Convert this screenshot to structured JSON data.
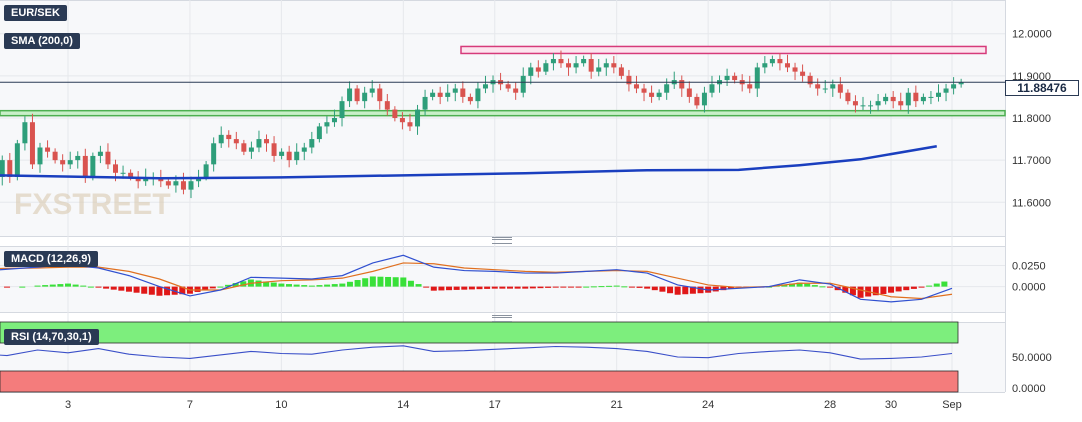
{
  "labels": {
    "pair": "EUR/SEK",
    "sma": "SMA (200,0)",
    "macd": "MACD (12,26,9)",
    "rsi": "RSI (14,70,30,1)",
    "last_price": "11.88476",
    "watermark": "FXSTREET"
  },
  "colors": {
    "up": "#2e9e7a",
    "down": "#d9534f",
    "sma": "#1a3fbf",
    "resistance_zone": "#d63a7a",
    "support_zone": "#4caf50",
    "macd_line": "#3050d0",
    "signal_line": "#e07020",
    "hist_up": "#39e039",
    "hist_down": "#e01818",
    "rsi_line": "#3a4fc8",
    "overbought_fill": "#7dee7d",
    "oversold_fill": "#f47c7c"
  },
  "chart_data": [
    {
      "type": "candlestick",
      "panel": "price",
      "x_ticks": [
        {
          "label": "3",
          "day": 3
        },
        {
          "label": "7",
          "day": 7
        },
        {
          "label": "10",
          "day": 10
        },
        {
          "label": "14",
          "day": 14
        },
        {
          "label": "17",
          "day": 17
        },
        {
          "label": "21",
          "day": 21
        },
        {
          "label": "24",
          "day": 24
        },
        {
          "label": "28",
          "day": 28
        },
        {
          "label": "30",
          "day": 30
        },
        {
          "label": "Sep",
          "day": 32
        }
      ],
      "y_ticks": [
        "12.0000",
        "11.9000",
        "11.8000",
        "11.7000",
        "11.6000"
      ],
      "y_tick_values": [
        12.0,
        11.9,
        11.8,
        11.7,
        11.6
      ],
      "ylim": [
        11.52,
        12.08
      ],
      "last_price": 11.88476,
      "resistance_zone": [
        11.955,
        11.965
      ],
      "support_zone": [
        11.805,
        11.815
      ],
      "sma_200": [
        {
          "day": 0.0,
          "value": 11.665
        },
        {
          "day": 6.0,
          "value": 11.657
        },
        {
          "day": 10.0,
          "value": 11.659
        },
        {
          "day": 14.0,
          "value": 11.664
        },
        {
          "day": 18.0,
          "value": 11.669
        },
        {
          "day": 22.0,
          "value": 11.676
        },
        {
          "day": 25.0,
          "value": 11.677
        },
        {
          "day": 27.0,
          "value": 11.688
        },
        {
          "day": 29.0,
          "value": 11.702
        },
        {
          "day": 31.5,
          "value": 11.733
        }
      ],
      "closes": [
        11.63,
        11.6,
        11.66,
        11.7,
        11.66,
        11.74,
        11.79,
        11.69,
        11.73,
        11.72,
        11.7,
        11.69,
        11.7,
        11.71,
        11.66,
        11.71,
        11.72,
        11.69,
        11.67,
        11.67,
        11.66,
        11.65,
        11.66,
        11.66,
        11.65,
        11.64,
        11.65,
        11.63,
        11.65,
        11.66,
        11.69,
        11.74,
        11.76,
        11.75,
        11.74,
        11.72,
        11.73,
        11.75,
        11.74,
        11.71,
        11.72,
        11.7,
        11.72,
        11.73,
        11.75,
        11.78,
        11.79,
        11.8,
        11.84,
        11.87,
        11.84,
        11.86,
        11.87,
        11.84,
        11.82,
        11.8,
        11.79,
        11.78,
        11.82,
        11.85,
        11.86,
        11.85,
        11.86,
        11.87,
        11.85,
        11.84,
        11.87,
        11.88,
        11.89,
        11.88,
        11.87,
        11.86,
        11.9,
        11.92,
        11.91,
        11.93,
        11.94,
        11.93,
        11.92,
        11.93,
        11.94,
        11.91,
        11.92,
        11.93,
        11.92,
        11.9,
        11.88,
        11.87,
        11.86,
        11.85,
        11.86,
        11.88,
        11.89,
        11.87,
        11.85,
        11.83,
        11.86,
        11.88,
        11.89,
        11.9,
        11.89,
        11.88,
        11.87,
        11.92,
        11.93,
        11.94,
        11.93,
        11.92,
        11.91,
        11.9,
        11.88,
        11.87,
        11.87,
        11.88,
        11.86,
        11.84,
        11.83,
        11.83,
        11.83,
        11.84,
        11.85,
        11.84,
        11.83,
        11.86,
        11.84,
        11.85,
        11.85,
        11.86,
        11.87,
        11.88,
        11.885
      ]
    },
    {
      "type": "line+bar",
      "panel": "macd",
      "y_ticks": [
        "0.0250",
        "0.0000"
      ],
      "y_tick_values": [
        0.025,
        0.0
      ],
      "ylim": [
        -0.03,
        0.048
      ],
      "macd": [
        {
          "day": 0,
          "value": 0.018
        },
        {
          "day": 2,
          "value": 0.023
        },
        {
          "day": 3,
          "value": 0.026
        },
        {
          "day": 4,
          "value": 0.022
        },
        {
          "day": 5,
          "value": 0.013
        },
        {
          "day": 6,
          "value": 0.0
        },
        {
          "day": 7,
          "value": -0.011
        },
        {
          "day": 8,
          "value": -0.004
        },
        {
          "day": 9,
          "value": 0.011
        },
        {
          "day": 10,
          "value": 0.01
        },
        {
          "day": 11,
          "value": 0.009
        },
        {
          "day": 12,
          "value": 0.013
        },
        {
          "day": 13,
          "value": 0.028
        },
        {
          "day": 14,
          "value": 0.037
        },
        {
          "day": 15,
          "value": 0.023
        },
        {
          "day": 16,
          "value": 0.019
        },
        {
          "day": 17,
          "value": 0.018
        },
        {
          "day": 18,
          "value": 0.016
        },
        {
          "day": 19,
          "value": 0.016
        },
        {
          "day": 20,
          "value": 0.018
        },
        {
          "day": 21,
          "value": 0.02
        },
        {
          "day": 22,
          "value": 0.016
        },
        {
          "day": 23,
          "value": 0.002
        },
        {
          "day": 24,
          "value": -0.004
        },
        {
          "day": 25,
          "value": -0.002
        },
        {
          "day": 26,
          "value": 0.0
        },
        {
          "day": 27,
          "value": 0.008
        },
        {
          "day": 28,
          "value": 0.003
        },
        {
          "day": 29,
          "value": -0.015
        },
        {
          "day": 30,
          "value": -0.018
        },
        {
          "day": 31,
          "value": -0.015
        },
        {
          "day": 32,
          "value": -0.002
        }
      ],
      "signal": [
        {
          "day": 0,
          "value": 0.021
        },
        {
          "day": 2,
          "value": 0.022
        },
        {
          "day": 3,
          "value": 0.023
        },
        {
          "day": 4,
          "value": 0.023
        },
        {
          "day": 5,
          "value": 0.018
        },
        {
          "day": 6,
          "value": 0.009
        },
        {
          "day": 7,
          "value": -0.004
        },
        {
          "day": 8,
          "value": -0.004
        },
        {
          "day": 9,
          "value": 0.004
        },
        {
          "day": 10,
          "value": 0.007
        },
        {
          "day": 11,
          "value": 0.008
        },
        {
          "day": 12,
          "value": 0.01
        },
        {
          "day": 13,
          "value": 0.018
        },
        {
          "day": 14,
          "value": 0.028
        },
        {
          "day": 15,
          "value": 0.027
        },
        {
          "day": 16,
          "value": 0.022
        },
        {
          "day": 17,
          "value": 0.02
        },
        {
          "day": 18,
          "value": 0.018
        },
        {
          "day": 19,
          "value": 0.017
        },
        {
          "day": 20,
          "value": 0.018
        },
        {
          "day": 21,
          "value": 0.019
        },
        {
          "day": 22,
          "value": 0.018
        },
        {
          "day": 23,
          "value": 0.01
        },
        {
          "day": 24,
          "value": 0.002
        },
        {
          "day": 25,
          "value": -0.001
        },
        {
          "day": 26,
          "value": 0.0
        },
        {
          "day": 27,
          "value": 0.004
        },
        {
          "day": 28,
          "value": 0.004
        },
        {
          "day": 29,
          "value": -0.004
        },
        {
          "day": 30,
          "value": -0.012
        },
        {
          "day": 31,
          "value": -0.014
        },
        {
          "day": 32,
          "value": -0.009
        }
      ]
    },
    {
      "type": "line",
      "panel": "rsi",
      "y_ticks": [
        "50.0000",
        "0.0000"
      ],
      "y_tick_values": [
        50.0,
        0.0
      ],
      "ylim": [
        0,
        100
      ],
      "overbought": 70,
      "oversold": 30,
      "rsi": [
        {
          "day": 0,
          "value": 55
        },
        {
          "day": 1,
          "value": 52
        },
        {
          "day": 2,
          "value": 60
        },
        {
          "day": 3,
          "value": 56
        },
        {
          "day": 4,
          "value": 62
        },
        {
          "day": 5,
          "value": 54
        },
        {
          "day": 6,
          "value": 50
        },
        {
          "day": 7,
          "value": 48
        },
        {
          "day": 8,
          "value": 53
        },
        {
          "day": 9,
          "value": 58
        },
        {
          "day": 10,
          "value": 55
        },
        {
          "day": 11,
          "value": 54
        },
        {
          "day": 12,
          "value": 60
        },
        {
          "day": 13,
          "value": 64
        },
        {
          "day": 14,
          "value": 66
        },
        {
          "day": 15,
          "value": 58
        },
        {
          "day": 16,
          "value": 59
        },
        {
          "day": 17,
          "value": 61
        },
        {
          "day": 18,
          "value": 63
        },
        {
          "day": 19,
          "value": 65
        },
        {
          "day": 20,
          "value": 64
        },
        {
          "day": 21,
          "value": 62
        },
        {
          "day": 22,
          "value": 58
        },
        {
          "day": 23,
          "value": 50
        },
        {
          "day": 24,
          "value": 49
        },
        {
          "day": 25,
          "value": 55
        },
        {
          "day": 26,
          "value": 58
        },
        {
          "day": 27,
          "value": 60
        },
        {
          "day": 28,
          "value": 56
        },
        {
          "day": 29,
          "value": 47
        },
        {
          "day": 30,
          "value": 48
        },
        {
          "day": 31,
          "value": 50
        },
        {
          "day": 32,
          "value": 55
        }
      ]
    }
  ]
}
